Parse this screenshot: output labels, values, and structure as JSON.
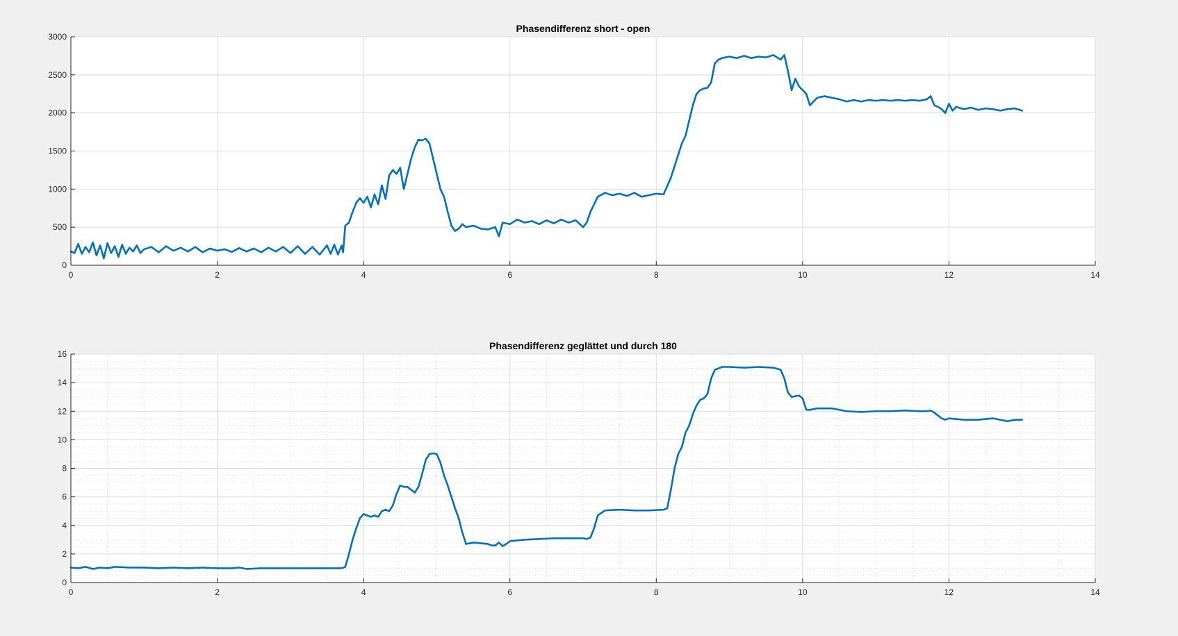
{
  "figure": {
    "background": "#f0f0f0",
    "axes_background": "#ffffff",
    "line_color": "#0072bd"
  },
  "chart_data": [
    {
      "type": "line",
      "title": "Phasendifferenz short - open",
      "xlabel": "",
      "ylabel": "",
      "xlim": [
        0,
        14
      ],
      "ylim": [
        0,
        3000
      ],
      "xticks": [
        0,
        2,
        4,
        6,
        8,
        10,
        12,
        14
      ],
      "yticks": [
        0,
        500,
        1000,
        1500,
        2000,
        2500,
        3000
      ],
      "grid": "major",
      "series": [
        {
          "color": "#0072bd",
          "x": [
            0,
            0.05,
            0.1,
            0.15,
            0.2,
            0.25,
            0.3,
            0.35,
            0.4,
            0.45,
            0.5,
            0.55,
            0.6,
            0.65,
            0.7,
            0.75,
            0.8,
            0.85,
            0.9,
            0.95,
            1.0,
            1.1,
            1.2,
            1.3,
            1.4,
            1.5,
            1.6,
            1.7,
            1.8,
            1.9,
            2.0,
            2.1,
            2.2,
            2.3,
            2.4,
            2.5,
            2.6,
            2.7,
            2.8,
            2.9,
            3.0,
            3.1,
            3.2,
            3.3,
            3.4,
            3.5,
            3.55,
            3.6,
            3.65,
            3.7,
            3.72,
            3.75,
            3.8,
            3.85,
            3.9,
            3.95,
            4.0,
            4.05,
            4.1,
            4.15,
            4.2,
            4.25,
            4.3,
            4.35,
            4.4,
            4.45,
            4.5,
            4.55,
            4.6,
            4.65,
            4.7,
            4.75,
            4.8,
            4.85,
            4.9,
            4.95,
            5.0,
            5.05,
            5.1,
            5.15,
            5.2,
            5.25,
            5.3,
            5.35,
            5.4,
            5.5,
            5.6,
            5.7,
            5.8,
            5.85,
            5.9,
            6.0,
            6.1,
            6.2,
            6.3,
            6.4,
            6.5,
            6.6,
            6.7,
            6.8,
            6.9,
            7.0,
            7.05,
            7.1,
            7.15,
            7.2,
            7.3,
            7.4,
            7.5,
            7.6,
            7.7,
            7.8,
            7.9,
            8.0,
            8.1,
            8.2,
            8.25,
            8.3,
            8.35,
            8.4,
            8.45,
            8.5,
            8.55,
            8.6,
            8.65,
            8.7,
            8.75,
            8.8,
            8.85,
            8.9,
            9.0,
            9.1,
            9.2,
            9.3,
            9.4,
            9.5,
            9.6,
            9.7,
            9.75,
            9.8,
            9.85,
            9.9,
            9.95,
            10.0,
            10.05,
            10.1,
            10.2,
            10.3,
            10.4,
            10.5,
            10.6,
            10.7,
            10.8,
            10.9,
            11.0,
            11.1,
            11.2,
            11.3,
            11.4,
            11.5,
            11.6,
            11.7,
            11.75,
            11.8,
            11.85,
            11.9,
            11.95,
            12.0,
            12.05,
            12.1,
            12.2,
            12.3,
            12.4,
            12.5,
            12.6,
            12.7,
            12.8,
            12.9,
            13.0
          ],
          "values": [
            180,
            160,
            280,
            150,
            240,
            170,
            300,
            130,
            260,
            90,
            290,
            160,
            250,
            110,
            270,
            150,
            230,
            180,
            260,
            160,
            210,
            240,
            170,
            250,
            190,
            230,
            180,
            240,
            170,
            220,
            190,
            210,
            175,
            225,
            180,
            220,
            170,
            230,
            180,
            240,
            160,
            250,
            150,
            240,
            140,
            260,
            150,
            270,
            140,
            260,
            170,
            520,
            560,
            700,
            820,
            880,
            820,
            900,
            760,
            930,
            800,
            1050,
            870,
            1180,
            1250,
            1200,
            1280,
            1000,
            1200,
            1400,
            1550,
            1650,
            1640,
            1660,
            1600,
            1400,
            1200,
            1000,
            900,
            700,
            520,
            450,
            480,
            540,
            500,
            520,
            480,
            470,
            500,
            380,
            560,
            540,
            600,
            560,
            580,
            540,
            590,
            550,
            600,
            560,
            590,
            500,
            560,
            700,
            800,
            900,
            950,
            920,
            940,
            910,
            950,
            900,
            920,
            940,
            930,
            1150,
            1300,
            1450,
            1600,
            1700,
            1900,
            2100,
            2250,
            2300,
            2320,
            2330,
            2400,
            2650,
            2700,
            2720,
            2740,
            2720,
            2750,
            2720,
            2740,
            2730,
            2760,
            2700,
            2760,
            2550,
            2300,
            2450,
            2350,
            2300,
            2250,
            2100,
            2200,
            2220,
            2200,
            2180,
            2150,
            2170,
            2150,
            2170,
            2160,
            2170,
            2160,
            2170,
            2160,
            2170,
            2160,
            2180,
            2220,
            2100,
            2080,
            2050,
            2000,
            2120,
            2030,
            2080,
            2050,
            2070,
            2040,
            2060,
            2050,
            2030,
            2050,
            2060,
            2030
          ]
        }
      ]
    },
    {
      "type": "line",
      "title": "Phasendifferenz geglättet und durch 180",
      "xlabel": "",
      "ylabel": "",
      "xlim": [
        0,
        14
      ],
      "ylim": [
        0,
        16
      ],
      "xticks": [
        0,
        2,
        4,
        6,
        8,
        10,
        12,
        14
      ],
      "yticks": [
        0,
        2,
        4,
        6,
        8,
        10,
        12,
        14,
        16
      ],
      "grid": "major+minor",
      "series": [
        {
          "color": "#0072bd",
          "x": [
            0,
            0.1,
            0.2,
            0.3,
            0.4,
            0.5,
            0.6,
            0.8,
            1.0,
            1.2,
            1.4,
            1.6,
            1.8,
            2.0,
            2.2,
            2.3,
            2.4,
            2.6,
            2.8,
            3.0,
            3.2,
            3.4,
            3.6,
            3.7,
            3.75,
            3.8,
            3.85,
            3.9,
            3.95,
            4.0,
            4.05,
            4.1,
            4.15,
            4.2,
            4.25,
            4.3,
            4.35,
            4.4,
            4.45,
            4.5,
            4.55,
            4.6,
            4.65,
            4.7,
            4.75,
            4.8,
            4.85,
            4.9,
            4.95,
            5.0,
            5.05,
            5.1,
            5.15,
            5.2,
            5.25,
            5.3,
            5.35,
            5.4,
            5.5,
            5.6,
            5.7,
            5.75,
            5.8,
            5.85,
            5.9,
            5.95,
            6.0,
            6.2,
            6.4,
            6.6,
            6.8,
            7.0,
            7.05,
            7.1,
            7.15,
            7.2,
            7.3,
            7.5,
            7.7,
            7.9,
            8.1,
            8.15,
            8.2,
            8.25,
            8.3,
            8.35,
            8.4,
            8.45,
            8.5,
            8.55,
            8.6,
            8.65,
            8.7,
            8.75,
            8.8,
            8.85,
            8.9,
            9.0,
            9.2,
            9.4,
            9.6,
            9.7,
            9.75,
            9.8,
            9.85,
            9.9,
            9.95,
            10.0,
            10.05,
            10.1,
            10.2,
            10.4,
            10.6,
            10.8,
            11.0,
            11.2,
            11.4,
            11.6,
            11.7,
            11.75,
            11.8,
            11.85,
            11.9,
            11.95,
            12.0,
            12.1,
            12.2,
            12.4,
            12.6,
            12.8,
            12.9,
            13.0
          ],
          "values": [
            1.05,
            1.0,
            1.1,
            0.95,
            1.05,
            1.0,
            1.1,
            1.05,
            1.05,
            1.0,
            1.05,
            1.0,
            1.05,
            1.0,
            1.0,
            1.05,
            0.95,
            1.0,
            1.0,
            1.0,
            1.0,
            1.0,
            1.0,
            1.0,
            1.1,
            2.0,
            3.0,
            3.8,
            4.5,
            4.8,
            4.7,
            4.6,
            4.7,
            4.6,
            5.0,
            5.1,
            5.0,
            5.4,
            6.2,
            6.8,
            6.7,
            6.7,
            6.5,
            6.3,
            6.7,
            7.6,
            8.6,
            9.0,
            9.05,
            9.0,
            8.4,
            7.5,
            6.8,
            6.0,
            5.2,
            4.5,
            3.5,
            2.7,
            2.8,
            2.75,
            2.7,
            2.6,
            2.6,
            2.8,
            2.55,
            2.7,
            2.9,
            3.0,
            3.05,
            3.1,
            3.1,
            3.1,
            3.05,
            3.15,
            3.8,
            4.7,
            5.05,
            5.1,
            5.05,
            5.05,
            5.1,
            5.2,
            6.5,
            8.0,
            9.0,
            9.5,
            10.5,
            11.0,
            11.8,
            12.4,
            12.8,
            12.9,
            13.2,
            14.3,
            14.9,
            15.0,
            15.1,
            15.1,
            15.05,
            15.1,
            15.05,
            14.9,
            14.3,
            13.3,
            13.0,
            13.05,
            13.1,
            12.9,
            12.1,
            12.1,
            12.2,
            12.2,
            12.0,
            11.95,
            12.0,
            12.0,
            12.05,
            12.0,
            12.0,
            12.05,
            11.9,
            11.7,
            11.5,
            11.4,
            11.5,
            11.45,
            11.4,
            11.4,
            11.5,
            11.3,
            11.4,
            11.4
          ]
        }
      ]
    }
  ]
}
